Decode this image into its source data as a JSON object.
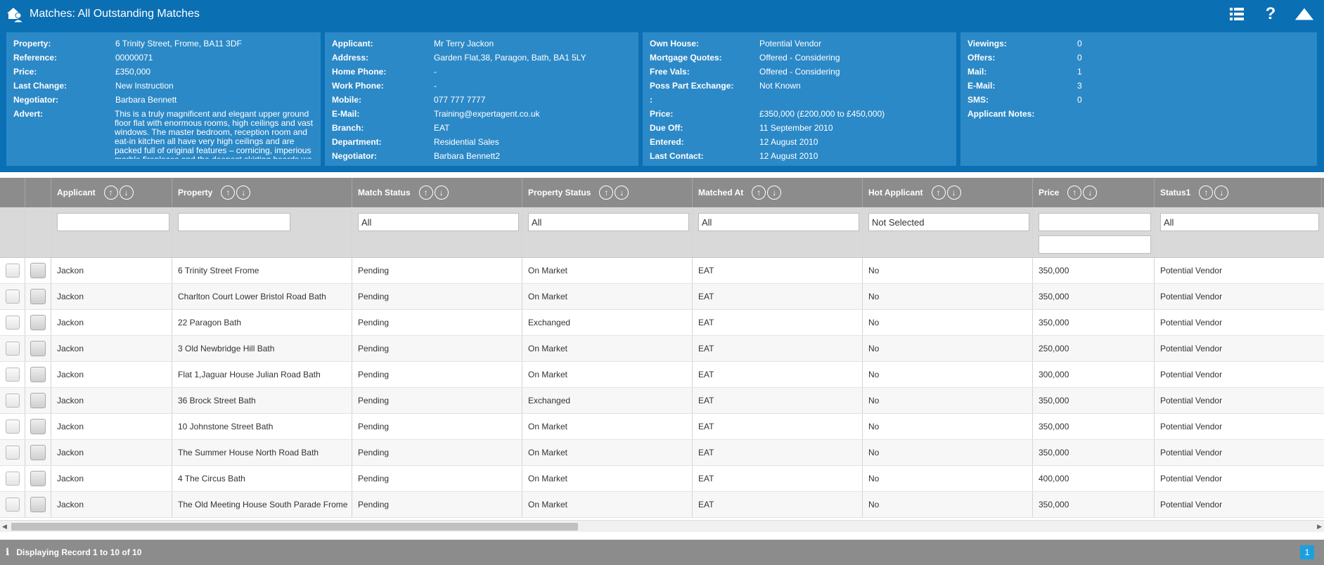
{
  "window": {
    "title": "Matches: All Outstanding Matches"
  },
  "toolbar": {
    "icons": [
      "list-icon",
      "help-icon",
      "collapse-up-icon"
    ]
  },
  "property_panel": {
    "rows": [
      {
        "key": "Property:",
        "value": "6 Trinity Street, Frome, BA11 3DF"
      },
      {
        "key": "Reference:",
        "value": "00000071"
      },
      {
        "key": "Price:",
        "value": "£350,000"
      },
      {
        "key": "Last Change:",
        "value": "New Instruction"
      },
      {
        "key": "Negotiator:",
        "value": "Barbara Bennett"
      }
    ],
    "advert_label": "Advert:",
    "advert_text": "This is a truly magnificent and elegant upper ground floor flat with enormous rooms, high ceilings and vast windows. The master bedroom, reception room and eat-in kitchen all have very high ceilings and are packed full of original features – cornicing, imperious marble fireplaces and the deepest skirting boards we have ever seen! The second bedroom (or terrific"
  },
  "applicant_panel": {
    "rows": [
      {
        "key": "Applicant:",
        "value": "Mr Terry Jackon"
      },
      {
        "key": "Address:",
        "value": "Garden Flat,38, Paragon, Bath, BA1 5LY"
      },
      {
        "key": "Home Phone:",
        "value": "-"
      },
      {
        "key": "Work Phone:",
        "value": "-"
      },
      {
        "key": "Mobile:",
        "value": "077 777 7777"
      },
      {
        "key": "E-Mail:",
        "value": "Training@expertagent.co.uk"
      },
      {
        "key": "Branch:",
        "value": "EAT"
      },
      {
        "key": "Department:",
        "value": "Residential Sales"
      },
      {
        "key": "Negotiator:",
        "value": "Barbara Bennett2"
      }
    ]
  },
  "requirements_panel": {
    "rows": [
      {
        "key": "Own House:",
        "value": "Potential Vendor"
      },
      {
        "key": "Mortgage Quotes:",
        "value": "Offered - Considering"
      },
      {
        "key": "Free Vals:",
        "value": "Offered - Considering"
      },
      {
        "key": "Poss Part Exchange:",
        "value": "Not Known"
      },
      {
        "key": ":",
        "value": ""
      },
      {
        "key": "Price:",
        "value": "£350,000 (£200,000 to £450,000)"
      },
      {
        "key": "Due Off:",
        "value": "11 September 2010"
      },
      {
        "key": "Entered:",
        "value": "12 August 2010"
      },
      {
        "key": "Last Contact:",
        "value": "12 August 2010"
      }
    ]
  },
  "stats_panel": {
    "rows": [
      {
        "key": "Viewings:",
        "value": "0"
      },
      {
        "key": "Offers:",
        "value": "0"
      },
      {
        "key": "Mail:",
        "value": "1"
      },
      {
        "key": "E-Mail:",
        "value": "3"
      },
      {
        "key": "SMS:",
        "value": "0"
      },
      {
        "key": "Applicant Notes:",
        "value": ""
      }
    ]
  },
  "grid": {
    "columns": [
      "Applicant",
      "Property",
      "Match Status",
      "Property Status",
      "Matched At",
      "Hot Applicant",
      "Price",
      "Status1"
    ],
    "filters": {
      "applicant": "",
      "property": "",
      "match_status": "All",
      "property_status": "All",
      "matched_at": "All",
      "hot_applicant": "Not Selected",
      "price_min": "",
      "price_max": "",
      "status1": "All"
    },
    "rows": [
      [
        "Jackon",
        "6 Trinity Street Frome",
        "Pending",
        "On Market",
        "EAT",
        "No",
        "350,000",
        "Potential Vendor"
      ],
      [
        "Jackon",
        "Charlton Court Lower Bristol Road Bath",
        "Pending",
        "On Market",
        "EAT",
        "No",
        "350,000",
        "Potential Vendor"
      ],
      [
        "Jackon",
        "22 Paragon Bath",
        "Pending",
        "Exchanged",
        "EAT",
        "No",
        "350,000",
        "Potential Vendor"
      ],
      [
        "Jackon",
        "3 Old Newbridge Hill Bath",
        "Pending",
        "On Market",
        "EAT",
        "No",
        "250,000",
        "Potential Vendor"
      ],
      [
        "Jackon",
        "Flat 1,Jaguar House Julian Road Bath",
        "Pending",
        "On Market",
        "EAT",
        "No",
        "300,000",
        "Potential Vendor"
      ],
      [
        "Jackon",
        "36 Brock Street Bath",
        "Pending",
        "Exchanged",
        "EAT",
        "No",
        "350,000",
        "Potential Vendor"
      ],
      [
        "Jackon",
        "10 Johnstone Street Bath",
        "Pending",
        "On Market",
        "EAT",
        "No",
        "350,000",
        "Potential Vendor"
      ],
      [
        "Jackon",
        "The Summer House North Road Bath",
        "Pending",
        "On Market",
        "EAT",
        "No",
        "350,000",
        "Potential Vendor"
      ],
      [
        "Jackon",
        "4 The Circus Bath",
        "Pending",
        "On Market",
        "EAT",
        "No",
        "400,000",
        "Potential Vendor"
      ],
      [
        "Jackon",
        "The Old Meeting House South Parade Frome",
        "Pending",
        "On Market",
        "EAT",
        "No",
        "350,000",
        "Potential Vendor"
      ]
    ]
  },
  "footer": {
    "status": "Displaying Record 1 to 10 of 10",
    "page": "1"
  },
  "colors": {
    "header_bg": "#0b6fb3",
    "panel_bg": "#2c89c7",
    "grid_header_bg": "#8c8c8c",
    "page_badge": "#1aa0e0"
  }
}
